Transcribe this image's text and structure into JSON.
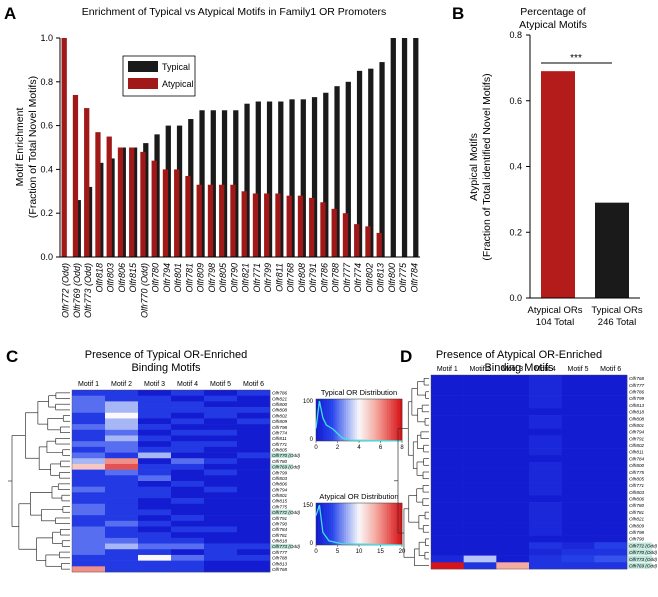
{
  "panels": {
    "a": {
      "letter": "A"
    },
    "b": {
      "letter": "B"
    },
    "c": {
      "letter": "C"
    },
    "d": {
      "letter": "D"
    }
  },
  "chart_data": [
    {
      "type": "bar",
      "panel": "A",
      "title": "Enrichment of Typical vs Atypical Motifs in Family1 OR Promoters",
      "ylabel_line1": "Motif Enrichment",
      "ylabel_line2": "(Fraction of Total Novel Motifs)",
      "ylim": [
        0,
        1.0
      ],
      "yticks": [
        "0.0",
        "0.2",
        "0.4",
        "0.6",
        "0.8",
        "1.0"
      ],
      "legend": [
        "Typical",
        "Atypical"
      ],
      "colors": {
        "typical": "#1a1a1a",
        "atypical": "#a01818"
      },
      "categories": [
        "Olfr772 (Odd)",
        "Olfr769 (Odd)",
        "Olfr773 (Odd)",
        "Olfr818",
        "Olfr803",
        "Olfr806",
        "Olfr815",
        "Olfr770 (Odd)",
        "Olfr780",
        "Olfr794",
        "Olfr801",
        "Olfr781",
        "Olfr809",
        "Olfr798",
        "Olfr805",
        "Olfr790",
        "Olfr821",
        "Olfr771",
        "Olfr799",
        "Olfr811",
        "Olfr768",
        "Olfr808",
        "Olfr791",
        "Olfr786",
        "Olfr788",
        "Olfr777",
        "Olfr774",
        "Olfr802",
        "Olfr813",
        "Olfr800",
        "Olfr775",
        "Olfr784"
      ],
      "series": [
        {
          "name": "Typical",
          "values": [
            0,
            0.26,
            0.32,
            0.43,
            0.45,
            0.5,
            0.5,
            0.52,
            0.56,
            0.6,
            0.6,
            0.63,
            0.67,
            0.67,
            0.67,
            0.67,
            0.7,
            0.71,
            0.71,
            0.71,
            0.72,
            0.72,
            0.73,
            0.75,
            0.78,
            0.8,
            0.85,
            0.86,
            0.89,
            1.0,
            1.0,
            1.0
          ]
        },
        {
          "name": "Atypical",
          "values": [
            1.0,
            0.74,
            0.68,
            0.57,
            0.55,
            0.5,
            0.5,
            0.48,
            0.44,
            0.4,
            0.4,
            0.37,
            0.33,
            0.33,
            0.33,
            0.33,
            0.3,
            0.29,
            0.29,
            0.29,
            0.28,
            0.28,
            0.27,
            0.25,
            0.22,
            0.2,
            0.15,
            0.14,
            0.11,
            0,
            0,
            0
          ]
        }
      ]
    },
    {
      "type": "bar",
      "panel": "B",
      "title_line1": "Percentage of",
      "title_line2": "Atypical Motifs",
      "ylabel_line1": "Atypical Motifs",
      "ylabel_line2": "(Fraction of Total identified Novel Motifs)",
      "ylim": [
        0,
        0.8
      ],
      "yticks": [
        "0.0",
        "0.2",
        "0.4",
        "0.6",
        "0.8"
      ],
      "categories": [
        {
          "label": "Atypical ORs",
          "sub": "104 Total"
        },
        {
          "label": "Typical ORs",
          "sub": "246 Total"
        }
      ],
      "values": [
        0.69,
        0.29
      ],
      "colors": [
        "#b41c1c",
        "#1a1a1a"
      ],
      "significance": "***"
    },
    {
      "type": "heatmap",
      "panel": "C",
      "title_line1": "Presence of Typical OR-Enriched",
      "title_line2": "Binding Motifs",
      "columns": [
        "Motif 1",
        "Motif 2",
        "Motif 3",
        "Motif 4",
        "Motif 5",
        "Motif 6"
      ],
      "rows": [
        "Olfr786",
        "Olfr821",
        "Olfr800",
        "Olfr808",
        "Olfr802",
        "Olfr809",
        "Olfr798",
        "Olfr774",
        "Olfr811",
        "Olfr771",
        "Olfr805",
        "Olfr770 (Odd)",
        "Olfr780",
        "Olfr769 (Odd)",
        "Olfr799",
        "Olfr803",
        "Olfr806",
        "Olfr794",
        "Olfr801",
        "Olfr815",
        "Olfr775",
        "Olfr772 (Odd)",
        "Olfr791",
        "Olfr790",
        "Olfr784",
        "Olfr781",
        "Olfr818",
        "Olfr773 (Odd)",
        "Olfr777",
        "Olfr788",
        "Olfr813",
        "Olfr768"
      ],
      "odd_rows": [
        "Olfr770 (Odd)",
        "Olfr769 (Odd)",
        "Olfr772 (Odd)",
        "Olfr773 (Odd)"
      ],
      "values": [
        [
          1,
          1,
          0,
          1,
          0,
          1
        ],
        [
          2,
          1,
          1,
          0,
          1,
          0
        ],
        [
          2,
          3,
          1,
          1,
          0,
          0
        ],
        [
          2,
          3,
          1,
          1,
          1,
          1
        ],
        [
          1,
          4,
          1,
          0,
          1,
          0
        ],
        [
          1,
          3,
          0,
          1,
          0,
          1
        ],
        [
          2,
          3,
          1,
          0,
          0,
          0
        ],
        [
          1,
          2,
          0,
          1,
          1,
          0
        ],
        [
          1,
          3,
          1,
          0,
          0,
          0
        ],
        [
          2,
          2,
          0,
          1,
          1,
          0
        ],
        [
          1,
          2,
          1,
          1,
          0,
          0
        ],
        [
          2,
          1,
          3,
          0,
          0,
          1
        ],
        [
          3,
          6,
          0,
          2,
          1,
          0
        ],
        [
          5,
          7,
          1,
          1,
          0,
          0
        ],
        [
          1,
          2,
          1,
          0,
          1,
          0
        ],
        [
          1,
          1,
          2,
          0,
          0,
          0
        ],
        [
          1,
          1,
          0,
          1,
          0,
          0
        ],
        [
          2,
          1,
          1,
          0,
          1,
          0
        ],
        [
          1,
          1,
          1,
          0,
          0,
          0
        ],
        [
          1,
          1,
          0,
          1,
          0,
          0
        ],
        [
          2,
          1,
          0,
          0,
          0,
          0
        ],
        [
          2,
          1,
          1,
          0,
          0,
          0
        ],
        [
          1,
          1,
          0,
          1,
          0,
          0
        ],
        [
          1,
          2,
          1,
          0,
          0,
          0
        ],
        [
          2,
          1,
          0,
          1,
          1,
          0
        ],
        [
          2,
          1,
          1,
          0,
          0,
          0
        ],
        [
          2,
          2,
          1,
          1,
          0,
          0
        ],
        [
          2,
          3,
          2,
          2,
          1,
          1
        ],
        [
          2,
          1,
          1,
          0,
          1,
          0
        ],
        [
          1,
          1,
          4,
          2,
          1,
          1
        ],
        [
          1,
          1,
          1,
          1,
          0,
          0
        ],
        [
          6,
          1,
          1,
          1,
          0,
          0
        ]
      ],
      "colorbar": {
        "title": "Typical OR Distribution",
        "range": [
          0,
          8
        ],
        "ticks": [
          "0",
          "2",
          "4",
          "6",
          "8"
        ],
        "hist_max": "100",
        "hist_zero": "0"
      }
    },
    {
      "type": "heatmap",
      "panel": "D",
      "title_line1": "Presence of Atypical OR-Enriched",
      "title_line2": "Binding Motifs",
      "columns": [
        "Motif 1",
        "Motif 2",
        "Motif 3",
        "Motif 4",
        "Motif 5",
        "Motif 6"
      ],
      "rows": [
        "Olfr768",
        "Olfr777",
        "Olfr786",
        "Olfr799",
        "Olfr813",
        "Olfr818",
        "Olfr808",
        "Olfr801",
        "Olfr794",
        "Olfr791",
        "Olfr802",
        "Olfr811",
        "Olfr784",
        "Olfr800",
        "Olfr775",
        "Olfr805",
        "Olfr771",
        "Olfr803",
        "Olfr806",
        "Olfr780",
        "Olfr781",
        "Olfr821",
        "Olfr809",
        "Olfr798",
        "Olfr790",
        "Olfr772 (Odd)",
        "Olfr770 (Odd)",
        "Olfr773 (Odd)",
        "Olfr769 (Odd)"
      ],
      "odd_rows": [
        "Olfr772 (Odd)",
        "Olfr770 (Odd)",
        "Olfr773 (Odd)",
        "Olfr769 (Odd)"
      ],
      "values": [
        [
          0,
          0,
          0,
          1,
          0,
          0
        ],
        [
          0,
          0,
          0,
          1,
          0,
          0
        ],
        [
          0,
          0,
          0,
          1,
          0,
          0
        ],
        [
          0,
          0,
          0,
          1,
          0,
          0
        ],
        [
          0,
          0,
          0,
          1,
          0,
          0
        ],
        [
          0,
          0,
          0,
          0,
          0,
          0
        ],
        [
          0,
          0,
          0,
          1,
          0,
          0
        ],
        [
          0,
          0,
          0,
          1,
          0,
          0
        ],
        [
          0,
          0,
          0,
          0,
          0,
          0
        ],
        [
          0,
          0,
          0,
          1,
          0,
          0
        ],
        [
          0,
          0,
          0,
          1,
          0,
          0
        ],
        [
          0,
          0,
          0,
          1,
          0,
          0
        ],
        [
          0,
          0,
          0,
          0,
          0,
          0
        ],
        [
          0,
          0,
          0,
          1,
          0,
          0
        ],
        [
          0,
          0,
          0,
          1,
          0,
          0
        ],
        [
          0,
          0,
          0,
          1,
          0,
          0
        ],
        [
          0,
          0,
          0,
          1,
          0,
          0
        ],
        [
          0,
          0,
          0,
          1,
          0,
          0
        ],
        [
          0,
          0,
          0,
          0,
          0,
          0
        ],
        [
          0,
          0,
          0,
          1,
          0,
          0
        ],
        [
          0,
          0,
          0,
          1,
          0,
          0
        ],
        [
          0,
          0,
          0,
          1,
          0,
          0
        ],
        [
          0,
          0,
          0,
          1,
          0,
          0
        ],
        [
          0,
          0,
          0,
          1,
          0,
          0
        ],
        [
          0,
          0,
          0,
          0,
          0,
          0
        ],
        [
          0,
          0,
          0,
          2,
          1,
          3
        ],
        [
          0,
          0,
          0,
          1,
          2,
          2
        ],
        [
          1,
          8,
          0,
          2,
          3,
          4
        ],
        [
          20,
          2,
          14,
          2,
          2,
          2
        ]
      ],
      "colorbar": {
        "title": "Atypical OR Distribution",
        "range": [
          0,
          20
        ],
        "ticks": [
          "0",
          "5",
          "10",
          "15",
          "20"
        ],
        "hist_max": "150",
        "hist_zero": "0"
      }
    }
  ]
}
